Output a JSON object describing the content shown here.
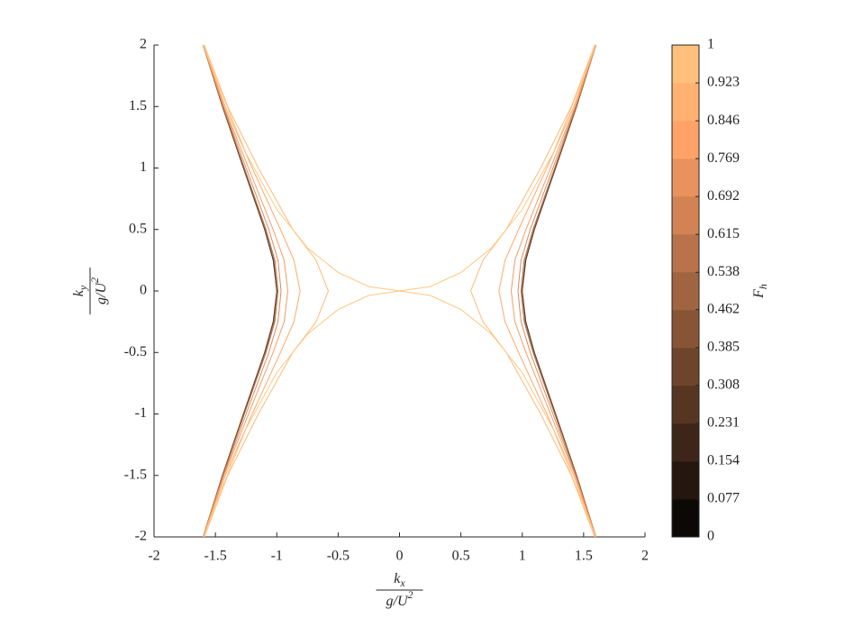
{
  "chart_data": {
    "type": "line",
    "xlabel": {
      "num": "k",
      "num_sub": "x",
      "den": "g/U",
      "den_sup": "2"
    },
    "ylabel": {
      "num": "k",
      "num_sub": "y",
      "den": "g/U",
      "den_sup": "2"
    },
    "xlim": [
      -2,
      2
    ],
    "ylim": [
      -2,
      2
    ],
    "xticks": [
      -2,
      -1.5,
      -1,
      -0.5,
      0,
      0.5,
      1,
      1.5,
      2
    ],
    "yticks": [
      -2,
      -1.5,
      -1,
      -0.5,
      0,
      0.5,
      1,
      1.5,
      2
    ],
    "series": [
      {
        "color": "#311f14",
        "x": [
          1.6,
          1.443,
          1.272,
          1.099,
          1.029,
          1,
          1.029,
          1.099,
          1.272,
          1.443,
          1.6,
          null,
          -1.6,
          -1.443,
          -1.272,
          -1.099,
          -1.029,
          -1,
          -1.029,
          -1.099,
          -1.272,
          -1.443,
          -1.6
        ],
        "values": [
          -2,
          -1.5,
          -1,
          -0.5,
          -0.25,
          0,
          0.25,
          0.5,
          1,
          1.5,
          2,
          null,
          -2,
          -1.5,
          -1,
          -0.5,
          -0.25,
          0,
          0.25,
          0.5,
          1,
          1.5,
          2
        ]
      },
      {
        "color": "#7b4d31",
        "x": [
          1.6,
          1.442,
          1.27,
          1.096,
          1.025,
          0.998,
          1.025,
          1.096,
          1.27,
          1.442,
          1.6,
          null,
          -1.6,
          -1.442,
          -1.27,
          -1.096,
          -1.025,
          -0.998,
          -1.025,
          -1.096,
          -1.27,
          -1.442,
          -1.6
        ],
        "values": [
          -2,
          -1.5,
          -1,
          -0.5,
          -0.25,
          0,
          0.25,
          0.5,
          1,
          1.5,
          2,
          null,
          -2,
          -1.5,
          -1,
          -0.5,
          -0.25,
          0,
          0.25,
          0.5,
          1,
          1.5,
          2
        ]
      },
      {
        "color": "#ac6c45",
        "x": [
          1.6,
          1.44,
          1.264,
          1.088,
          1.016,
          0.99,
          1.016,
          1.088,
          1.264,
          1.44,
          1.6,
          null,
          -1.6,
          -1.44,
          -1.264,
          -1.088,
          -1.016,
          -0.99,
          -1.016,
          -1.088,
          -1.264,
          -1.44,
          -1.6
        ],
        "values": [
          -2,
          -1.5,
          -1,
          -0.5,
          -0.25,
          0,
          0.25,
          0.5,
          1,
          1.5,
          2,
          null,
          -2,
          -1.5,
          -1,
          -0.5,
          -0.25,
          0,
          0.25,
          0.5,
          1,
          1.5,
          2
        ]
      },
      {
        "color": "#dd8a59",
        "x": [
          1.6,
          1.435,
          1.25,
          1.065,
          0.99,
          0.965,
          0.99,
          1.065,
          1.25,
          1.435,
          1.6,
          null,
          -1.6,
          -1.435,
          -1.25,
          -1.065,
          -0.99,
          -0.965,
          -0.99,
          -1.065,
          -1.25,
          -1.435,
          -1.6
        ],
        "values": [
          -2,
          -1.5,
          -1,
          -0.5,
          -0.25,
          0,
          0.25,
          0.5,
          1,
          1.5,
          2,
          null,
          -2,
          -1.5,
          -1,
          -0.5,
          -0.25,
          0,
          0.25,
          0.5,
          1,
          1.5,
          2
        ]
      },
      {
        "color": "#f59a62",
        "x": [
          1.6,
          1.43,
          1.23,
          1.03,
          0.94,
          0.91,
          0.94,
          1.03,
          1.23,
          1.43,
          1.6,
          null,
          -1.6,
          -1.43,
          -1.23,
          -1.03,
          -0.94,
          -0.91,
          -0.94,
          -1.03,
          -1.23,
          -1.43,
          -1.6
        ],
        "values": [
          -2,
          -1.5,
          -1,
          -0.5,
          -0.25,
          0,
          0.25,
          0.5,
          1,
          1.5,
          2,
          null,
          -2,
          -1.5,
          -1,
          -0.5,
          -0.25,
          0,
          0.25,
          0.5,
          1,
          1.5,
          2
        ]
      },
      {
        "color": "#ffa96c",
        "x": [
          1.6,
          1.42,
          1.2,
          0.97,
          0.86,
          0.81,
          0.86,
          0.97,
          1.2,
          1.42,
          1.6,
          null,
          -1.6,
          -1.42,
          -1.2,
          -0.97,
          -0.86,
          -0.81,
          -0.86,
          -0.97,
          -1.2,
          -1.42,
          -1.6
        ],
        "values": [
          -2,
          -1.5,
          -1,
          -0.5,
          -0.25,
          0,
          0.25,
          0.5,
          1,
          1.5,
          2,
          null,
          -2,
          -1.5,
          -1,
          -0.5,
          -0.25,
          0,
          0.25,
          0.5,
          1,
          1.5,
          2
        ]
      },
      {
        "color": "#ffb976",
        "x": [
          1.59,
          1.4,
          1.15,
          0.87,
          0.68,
          0.58,
          0.68,
          0.87,
          1.15,
          1.4,
          1.59,
          null,
          -1.59,
          -1.4,
          -1.15,
          -0.87,
          -0.68,
          -0.58,
          -0.68,
          -0.87,
          -1.15,
          -1.4,
          -1.59
        ],
        "values": [
          -2,
          -1.5,
          -1,
          -0.5,
          -0.25,
          0,
          0.25,
          0.5,
          1,
          1.5,
          2,
          null,
          -2,
          -1.5,
          -1,
          -0.5,
          -0.25,
          0,
          0.25,
          0.5,
          1,
          1.5,
          2
        ]
      },
      {
        "color": "#ffc880",
        "x": [
          -1.59,
          -1.5,
          -1.25,
          -1,
          -0.75,
          -0.5,
          -0.25,
          0,
          0.25,
          0.5,
          0.75,
          1,
          1.25,
          1.5,
          1.59,
          null,
          -1.59,
          -1.5,
          -1.25,
          -1,
          -0.75,
          -0.5,
          -0.25,
          0,
          0.25,
          0.5,
          0.75,
          1,
          1.25,
          1.5,
          1.59
        ],
        "values": [
          2,
          1.738,
          1.118,
          0.663,
          0.351,
          0.15,
          0.036,
          0,
          0.036,
          0.15,
          0.351,
          0.663,
          1.118,
          1.738,
          2,
          null,
          -2,
          -1.738,
          -1.118,
          -0.663,
          -0.351,
          -0.15,
          -0.036,
          0,
          -0.036,
          -0.15,
          -0.351,
          -0.663,
          -1.118,
          -1.738,
          -2
        ]
      }
    ],
    "colorbar": {
      "label": {
        "text": "F",
        "sub": "h"
      },
      "lim": [
        0,
        1
      ],
      "ticks": [
        0,
        0.077,
        0.154,
        0.231,
        0.308,
        0.385,
        0.462,
        0.538,
        0.615,
        0.692,
        0.769,
        0.846,
        0.923,
        1
      ],
      "colors": [
        "#0c0805",
        "#25170f",
        "#3d2619",
        "#563622",
        "#6e452c",
        "#875536",
        "#a06440",
        "#b8734a",
        "#d18354",
        "#e9925e",
        "#ffa267",
        "#ffb171",
        "#ffc07b"
      ]
    }
  }
}
